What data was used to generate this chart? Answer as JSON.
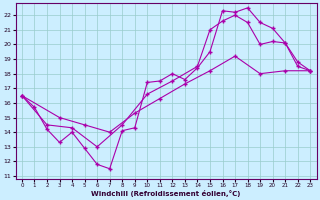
{
  "xlabel": "Windchill (Refroidissement éolien,°C)",
  "bg_color": "#cceeff",
  "grid_color": "#99cccc",
  "line_color": "#aa00aa",
  "xlim": [
    -0.5,
    23.5
  ],
  "ylim": [
    10.8,
    22.8
  ],
  "xticks": [
    0,
    1,
    2,
    3,
    4,
    5,
    6,
    7,
    8,
    9,
    10,
    11,
    12,
    13,
    14,
    15,
    16,
    17,
    18,
    19,
    20,
    21,
    22,
    23
  ],
  "yticks": [
    11,
    12,
    13,
    14,
    15,
    16,
    17,
    18,
    19,
    20,
    21,
    22
  ],
  "line1_x": [
    0,
    1,
    2,
    3,
    4,
    5,
    6,
    7,
    8,
    9,
    10,
    11,
    12,
    13,
    14,
    15,
    16,
    17,
    18,
    19,
    20,
    21,
    22,
    23
  ],
  "line1_y": [
    16.5,
    15.7,
    14.2,
    13.3,
    14.0,
    12.9,
    11.8,
    11.5,
    14.1,
    14.3,
    17.4,
    17.5,
    18.0,
    17.6,
    18.4,
    19.5,
    22.3,
    22.2,
    22.5,
    21.5,
    21.1,
    20.1,
    18.8,
    18.2
  ],
  "line2_x": [
    0,
    3,
    5,
    7,
    9,
    11,
    13,
    15,
    17,
    19,
    21,
    23
  ],
  "line2_y": [
    16.5,
    15.0,
    14.5,
    14.0,
    15.3,
    16.3,
    17.3,
    18.2,
    19.2,
    18.0,
    18.2,
    18.2
  ],
  "line3_x": [
    0,
    2,
    4,
    6,
    8,
    10,
    12,
    14,
    15,
    16,
    17,
    18,
    19,
    20,
    21,
    22,
    23
  ],
  "line3_y": [
    16.5,
    14.5,
    14.3,
    13.0,
    14.5,
    16.6,
    17.5,
    18.5,
    21.0,
    21.6,
    22.0,
    21.5,
    20.0,
    20.2,
    20.1,
    18.5,
    18.2
  ]
}
